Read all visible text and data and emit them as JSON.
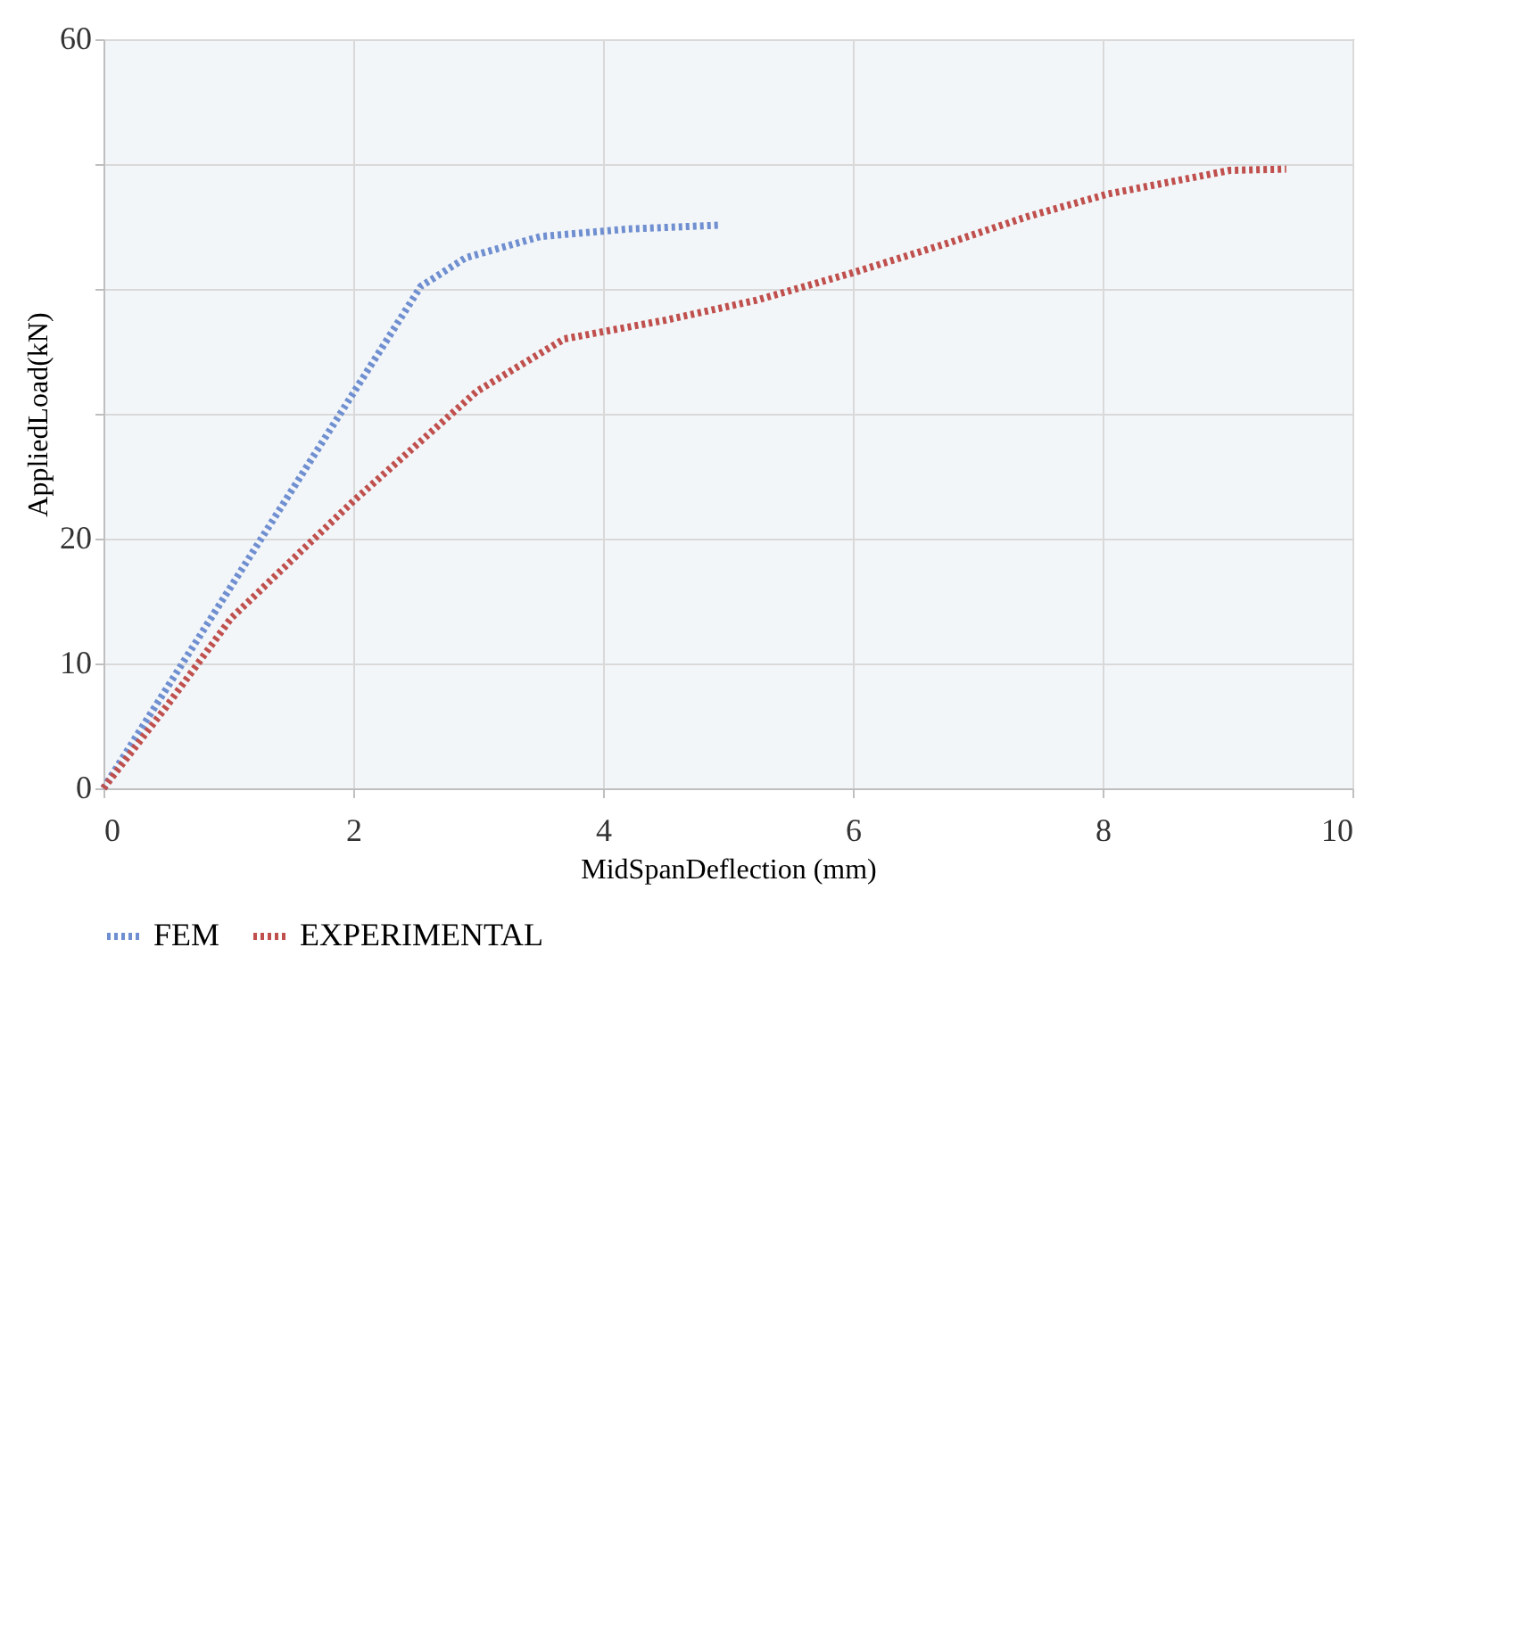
{
  "chart_data": {
    "type": "line",
    "xlabel": "MidSpanDeflection (mm)",
    "ylabel": "AppliedLoad(kN)",
    "xlim": [
      0,
      10
    ],
    "xticks": [
      0,
      2,
      4,
      6,
      8,
      10
    ],
    "ylim": [
      0,
      60
    ],
    "yticks": [
      0,
      10,
      20,
      {
        "value": 30,
        "label": null
      },
      {
        "value": 40,
        "label": null
      },
      {
        "value": 50,
        "label": null
      },
      60
    ],
    "grid": true,
    "legend": "bottom",
    "line_style": "dotted",
    "marker": "none",
    "series": [
      {
        "name": "FEM",
        "color": "#6f8fd0",
        "x": [
          0,
          1.2,
          2.54,
          2.9,
          3.5,
          4.2,
          4.92
        ],
        "values": [
          0,
          19,
          40.2,
          42.5,
          44.2,
          44.8,
          45.1
        ]
      },
      {
        "name": "EXPERIMENTAL",
        "color": "#c0504d",
        "x": [
          0,
          0.5,
          1.02,
          2.0,
          2.99,
          3.69,
          4.5,
          5.23,
          6.0,
          6.77,
          7.4,
          8.04,
          9.02,
          9.47
        ],
        "values": [
          0,
          6.5,
          13.6,
          23,
          31.8,
          36,
          37.5,
          39.1,
          41.3,
          43.7,
          45.8,
          47.6,
          49.5,
          49.6
        ]
      }
    ]
  }
}
